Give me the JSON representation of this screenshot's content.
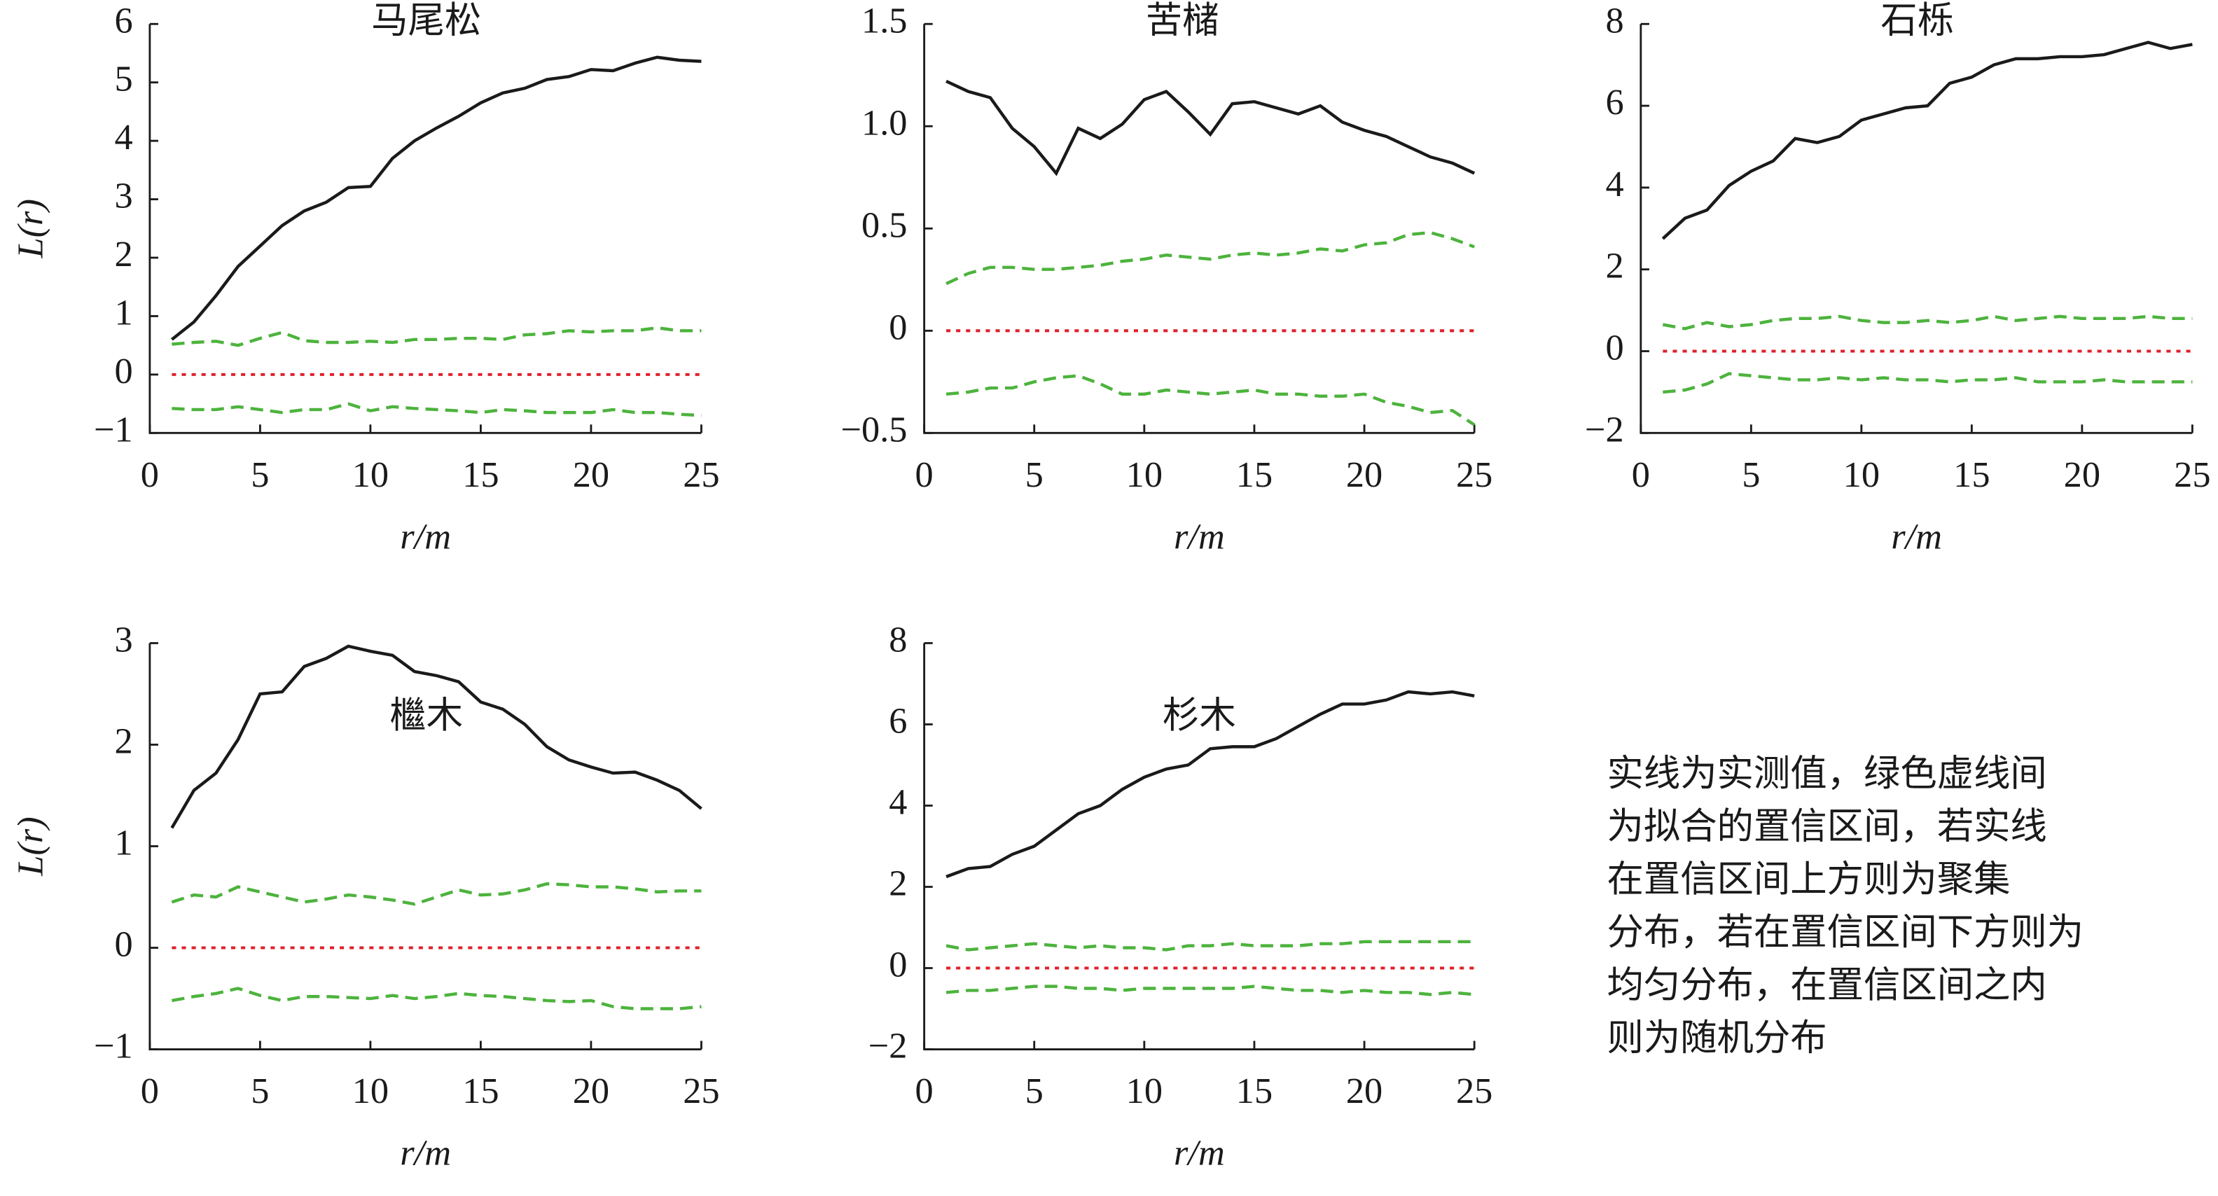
{
  "chart_data": [
    {
      "type": "line",
      "title": "马尾松",
      "xlabel": "r/m",
      "ylabel": "L(r)",
      "x": [
        1,
        2,
        3,
        4,
        5,
        6,
        7,
        8,
        9,
        10,
        11,
        12,
        13,
        14,
        15,
        16,
        17,
        18,
        19,
        20,
        21,
        22,
        23,
        24,
        25
      ],
      "xlim": [
        0,
        25
      ],
      "xticks": [
        0,
        5,
        10,
        15,
        20,
        25
      ],
      "ylim": [
        -1,
        6
      ],
      "yticks": [
        {
          "value": -1,
          "label": "−1"
        },
        0,
        1,
        2,
        3,
        4,
        5,
        6
      ],
      "hline": 0,
      "hline_color": "#e0202a",
      "series": [
        {
          "color": "#1a1a1a",
          "style": "solid",
          "values": [
            0.6,
            0.9,
            1.35,
            1.85,
            2.2,
            2.55,
            2.8,
            2.95,
            3.2,
            3.22,
            3.7,
            4.0,
            4.22,
            4.42,
            4.65,
            4.82,
            4.9,
            5.05,
            5.1,
            5.22,
            5.2,
            5.33,
            5.43,
            5.38,
            5.36
          ]
        },
        {
          "color": "#4db33d",
          "style": "dashed",
          "values": [
            0.52,
            0.55,
            0.57,
            0.5,
            0.62,
            0.72,
            0.58,
            0.55,
            0.55,
            0.57,
            0.55,
            0.6,
            0.6,
            0.62,
            0.62,
            0.6,
            0.68,
            0.7,
            0.75,
            0.73,
            0.75,
            0.75,
            0.8,
            0.75,
            0.75
          ]
        },
        {
          "color": "#4db33d",
          "style": "dashed",
          "values": [
            -0.58,
            -0.6,
            -0.6,
            -0.55,
            -0.6,
            -0.65,
            -0.6,
            -0.6,
            -0.5,
            -0.62,
            -0.55,
            -0.58,
            -0.6,
            -0.62,
            -0.65,
            -0.6,
            -0.62,
            -0.65,
            -0.65,
            -0.65,
            -0.6,
            -0.65,
            -0.65,
            -0.68,
            -0.7
          ]
        }
      ]
    },
    {
      "type": "line",
      "title": "苦槠",
      "xlabel": "r/m",
      "x": [
        1,
        2,
        3,
        4,
        5,
        6,
        7,
        8,
        9,
        10,
        11,
        12,
        13,
        14,
        15,
        16,
        17,
        18,
        19,
        20,
        21,
        22,
        23,
        24,
        25
      ],
      "xlim": [
        0,
        25
      ],
      "xticks": [
        0,
        5,
        10,
        15,
        20,
        25
      ],
      "ylim": [
        -0.5,
        1.5
      ],
      "yticks": [
        {
          "value": -0.5,
          "label": "−0.5"
        },
        0,
        0.5,
        {
          "value": 1,
          "label": "1.0"
        },
        1.5
      ],
      "hline": 0,
      "hline_color": "#e0202a",
      "series": [
        {
          "color": "#1a1a1a",
          "style": "solid",
          "values": [
            1.22,
            1.17,
            1.14,
            0.99,
            0.9,
            0.77,
            0.99,
            0.94,
            1.01,
            1.13,
            1.17,
            1.07,
            0.96,
            1.11,
            1.12,
            1.09,
            1.06,
            1.1,
            1.02,
            0.98,
            0.95,
            0.9,
            0.85,
            0.82,
            0.77
          ]
        },
        {
          "color": "#4db33d",
          "style": "dashed",
          "values": [
            0.23,
            0.28,
            0.31,
            0.31,
            0.3,
            0.3,
            0.31,
            0.32,
            0.34,
            0.35,
            0.37,
            0.36,
            0.35,
            0.37,
            0.38,
            0.37,
            0.38,
            0.4,
            0.39,
            0.42,
            0.43,
            0.47,
            0.48,
            0.45,
            0.41
          ]
        },
        {
          "color": "#4db33d",
          "style": "dashed",
          "values": [
            -0.31,
            -0.3,
            -0.28,
            -0.28,
            -0.25,
            -0.23,
            -0.22,
            -0.26,
            -0.31,
            -0.31,
            -0.29,
            -0.3,
            -0.31,
            -0.3,
            -0.29,
            -0.31,
            -0.31,
            -0.32,
            -0.32,
            -0.31,
            -0.35,
            -0.37,
            -0.4,
            -0.39,
            -0.46
          ]
        }
      ]
    },
    {
      "type": "line",
      "title": "石栎",
      "xlabel": "r/m",
      "x": [
        1,
        2,
        3,
        4,
        5,
        6,
        7,
        8,
        9,
        10,
        11,
        12,
        13,
        14,
        15,
        16,
        17,
        18,
        19,
        20,
        21,
        22,
        23,
        24,
        25
      ],
      "xlim": [
        0,
        25
      ],
      "xticks": [
        0,
        5,
        10,
        15,
        20,
        25
      ],
      "ylim": [
        -2,
        8
      ],
      "yticks": [
        {
          "value": -2,
          "label": "−2"
        },
        0,
        2,
        4,
        6,
        8
      ],
      "hline": 0,
      "hline_color": "#e0202a",
      "series": [
        {
          "color": "#1a1a1a",
          "style": "solid",
          "values": [
            2.75,
            3.25,
            3.45,
            4.05,
            4.4,
            4.65,
            5.2,
            5.1,
            5.25,
            5.65,
            5.8,
            5.95,
            6.0,
            6.55,
            6.7,
            7.0,
            7.15,
            7.15,
            7.2,
            7.2,
            7.25,
            7.4,
            7.55,
            7.4,
            7.5
          ]
        },
        {
          "color": "#4db33d",
          "style": "dashed",
          "values": [
            0.65,
            0.55,
            0.7,
            0.6,
            0.65,
            0.75,
            0.8,
            0.8,
            0.85,
            0.75,
            0.7,
            0.7,
            0.75,
            0.7,
            0.75,
            0.85,
            0.75,
            0.8,
            0.85,
            0.8,
            0.8,
            0.8,
            0.85,
            0.8,
            0.8
          ]
        },
        {
          "color": "#4db33d",
          "style": "dashed",
          "values": [
            -1.0,
            -0.95,
            -0.8,
            -0.55,
            -0.6,
            -0.65,
            -0.7,
            -0.7,
            -0.65,
            -0.7,
            -0.65,
            -0.7,
            -0.7,
            -0.75,
            -0.7,
            -0.7,
            -0.65,
            -0.75,
            -0.75,
            -0.75,
            -0.7,
            -0.75,
            -0.75,
            -0.75,
            -0.75
          ]
        }
      ]
    },
    {
      "type": "line",
      "title": "檵木",
      "xlabel": "r/m",
      "ylabel": "L(r)",
      "x": [
        1,
        2,
        3,
        4,
        5,
        6,
        7,
        8,
        9,
        10,
        11,
        12,
        13,
        14,
        15,
        16,
        17,
        18,
        19,
        20,
        21,
        22,
        23,
        24,
        25
      ],
      "xlim": [
        0,
        25
      ],
      "xticks": [
        0,
        5,
        10,
        15,
        20,
        25
      ],
      "ylim": [
        -1,
        3
      ],
      "yticks": [
        {
          "value": -1,
          "label": "−1"
        },
        0,
        1,
        2,
        3
      ],
      "hline": 0,
      "hline_color": "#e0202a",
      "series": [
        {
          "color": "#1a1a1a",
          "style": "solid",
          "values": [
            1.18,
            1.55,
            1.72,
            2.05,
            2.5,
            2.52,
            2.77,
            2.85,
            2.97,
            2.92,
            2.88,
            2.72,
            2.68,
            2.62,
            2.42,
            2.35,
            2.2,
            1.98,
            1.85,
            1.78,
            1.72,
            1.73,
            1.65,
            1.55,
            1.37
          ]
        },
        {
          "color": "#4db33d",
          "style": "dashed",
          "values": [
            0.45,
            0.52,
            0.5,
            0.6,
            0.55,
            0.5,
            0.45,
            0.48,
            0.52,
            0.5,
            0.47,
            0.43,
            0.5,
            0.57,
            0.52,
            0.53,
            0.57,
            0.63,
            0.62,
            0.6,
            0.6,
            0.58,
            0.55,
            0.56,
            0.56
          ]
        },
        {
          "color": "#4db33d",
          "style": "dashed",
          "values": [
            -0.52,
            -0.48,
            -0.45,
            -0.4,
            -0.47,
            -0.52,
            -0.48,
            -0.48,
            -0.49,
            -0.5,
            -0.47,
            -0.5,
            -0.48,
            -0.45,
            -0.47,
            -0.48,
            -0.5,
            -0.52,
            -0.53,
            -0.52,
            -0.58,
            -0.6,
            -0.6,
            -0.6,
            -0.58
          ]
        }
      ]
    },
    {
      "type": "line",
      "title": "杉木",
      "xlabel": "r/m",
      "x": [
        1,
        2,
        3,
        4,
        5,
        6,
        7,
        8,
        9,
        10,
        11,
        12,
        13,
        14,
        15,
        16,
        17,
        18,
        19,
        20,
        21,
        22,
        23,
        24,
        25
      ],
      "xlim": [
        0,
        25
      ],
      "xticks": [
        0,
        5,
        10,
        15,
        20,
        25
      ],
      "ylim": [
        -2,
        8
      ],
      "yticks": [
        {
          "value": -2,
          "label": "−2"
        },
        0,
        2,
        4,
        6,
        8
      ],
      "hline": 0,
      "hline_color": "#e0202a",
      "series": [
        {
          "color": "#1a1a1a",
          "style": "solid",
          "values": [
            2.25,
            2.45,
            2.5,
            2.8,
            3.0,
            3.4,
            3.8,
            4.0,
            4.4,
            4.7,
            4.9,
            5.0,
            5.4,
            5.45,
            5.45,
            5.65,
            5.95,
            6.25,
            6.5,
            6.5,
            6.6,
            6.8,
            6.75,
            6.8,
            6.7
          ]
        },
        {
          "color": "#4db33d",
          "style": "dashed",
          "values": [
            0.55,
            0.45,
            0.5,
            0.55,
            0.6,
            0.55,
            0.5,
            0.55,
            0.5,
            0.5,
            0.45,
            0.55,
            0.55,
            0.6,
            0.55,
            0.55,
            0.55,
            0.6,
            0.6,
            0.65,
            0.65,
            0.65,
            0.65,
            0.65,
            0.65
          ]
        },
        {
          "color": "#4db33d",
          "style": "dashed",
          "values": [
            -0.6,
            -0.55,
            -0.55,
            -0.5,
            -0.45,
            -0.45,
            -0.5,
            -0.5,
            -0.55,
            -0.5,
            -0.5,
            -0.5,
            -0.5,
            -0.5,
            -0.45,
            -0.5,
            -0.55,
            -0.55,
            -0.6,
            -0.55,
            -0.6,
            -0.6,
            -0.65,
            -0.6,
            -0.65
          ]
        }
      ]
    }
  ],
  "note": [
    "实线为实测值，绿色虚线间",
    "为拟合的置信区间，若实线",
    "在置信区间上方则为聚集",
    "分布，若在置信区间下方则为",
    "均匀分布，在置信区间之内",
    "则为随机分布"
  ]
}
